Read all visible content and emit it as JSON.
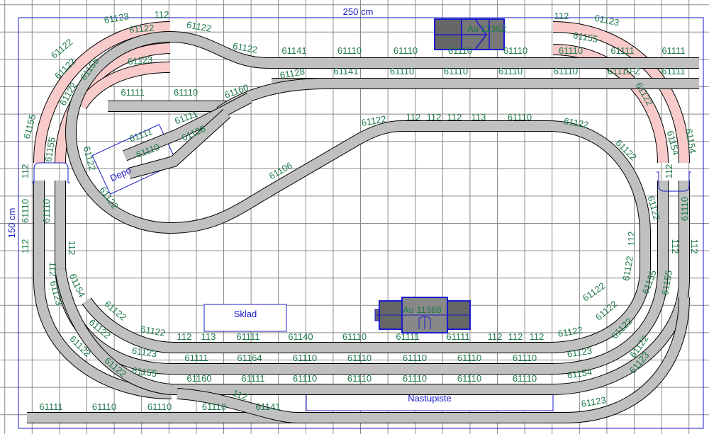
{
  "board": {
    "width_label": "250 cm",
    "height_label": "150 cm"
  },
  "colors": {
    "track": "#c0c0c0",
    "track_outline": "#000000",
    "placeholder_track": "#f8caca",
    "label": "#1e7a4a",
    "annotation": "#1a1acc",
    "grid": "#808080",
    "building": "#666666"
  },
  "buildings": {
    "top": "Au 11362",
    "bottom": "Au 11368"
  },
  "areas": {
    "depot": "Depo",
    "warehouse": "Sklad",
    "platform": "Nastupiste"
  },
  "labels": [
    "61123",
    "112",
    "61122",
    "61122",
    "61122",
    "61141",
    "61110",
    "61110",
    "61110",
    "61110",
    "112",
    "61123",
    "61155",
    "61110",
    "61111",
    "61111",
    "61122",
    "61122",
    "61155",
    "61123",
    "61122",
    "61111",
    "61110",
    "61160",
    "61128",
    "61141",
    "61110",
    "61110",
    "61110",
    "61110",
    "61110-Z",
    "61111",
    "61122",
    "61155",
    "61155",
    "112",
    "61111",
    "61128",
    "61111",
    "61110",
    "61122",
    "61122",
    "61106",
    "61122",
    "112",
    "112",
    "112",
    "113",
    "61110",
    "61122",
    "61122",
    "61154",
    "61154",
    "112",
    "61122",
    "61110",
    "61110",
    "61110",
    "112",
    "112",
    "112",
    "61154",
    "61123",
    "61122",
    "61122",
    "61122",
    "61122",
    "61123",
    "61155",
    "61122",
    "112",
    "113",
    "61111",
    "61140",
    "61110",
    "61111",
    "61111",
    "112",
    "112",
    "112",
    "61122",
    "61111",
    "61164",
    "61110",
    "61110",
    "61110",
    "61110",
    "61110",
    "61123",
    "61160",
    "61111",
    "61110",
    "61110",
    "61110",
    "61110",
    "61110",
    "61154",
    "61111",
    "61110",
    "61110",
    "61110",
    "112",
    "61141",
    "61123",
    "61122",
    "61122",
    "61123",
    "61122",
    "61155",
    "61155",
    "112",
    "112",
    "112",
    "61122",
    "61122"
  ]
}
